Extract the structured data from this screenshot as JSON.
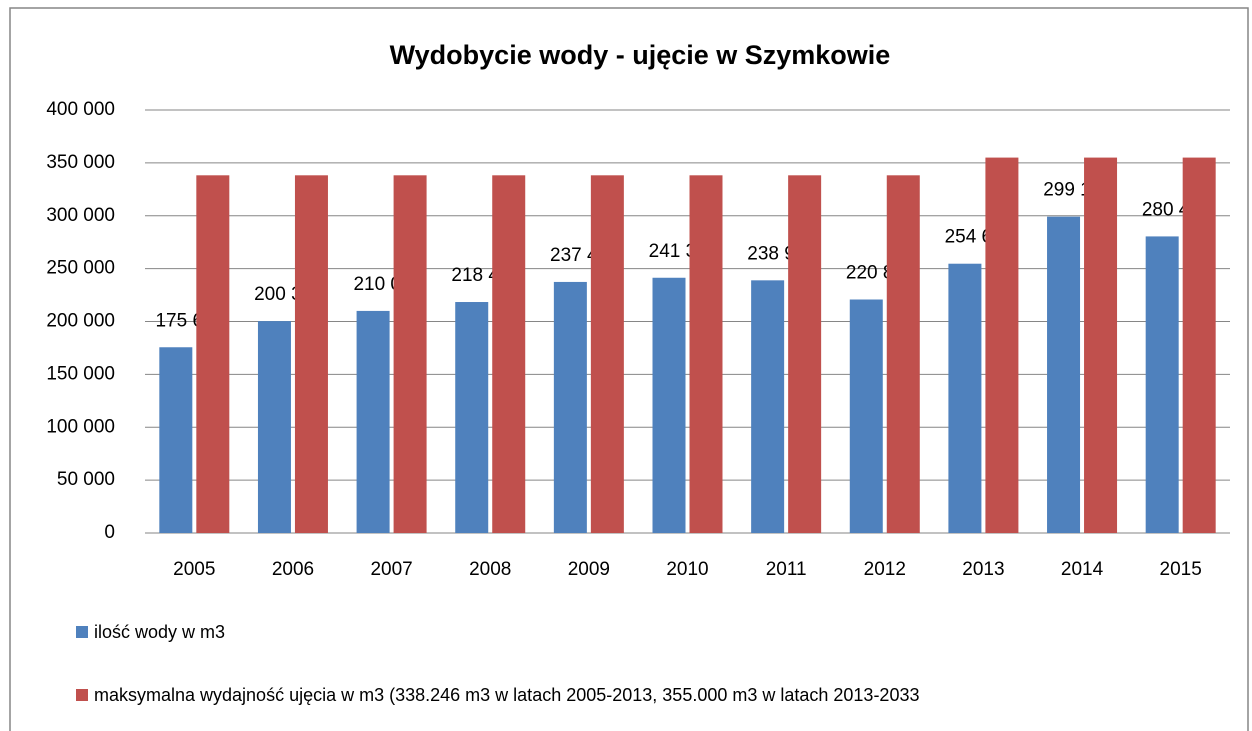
{
  "chart_data": {
    "type": "bar",
    "title": "Wydobycie wody - ujęcie w Szymkowie",
    "categories": [
      "2005",
      "2006",
      "2007",
      "2008",
      "2009",
      "2010",
      "2011",
      "2012",
      "2013",
      "2014",
      "2015"
    ],
    "series": [
      {
        "name": "ilość wody w m3",
        "color": "#4f81bd",
        "values": [
          175645,
          200388,
          210011,
          218423,
          237412,
          241360,
          238930,
          220800,
          254646,
          299155,
          280462
        ],
        "value_labels": [
          "175 645",
          "200 388",
          "210 011",
          "218 423",
          "237 412",
          "241 360",
          "238 930",
          "220 800",
          "254 646",
          "299 155",
          "280 462"
        ]
      },
      {
        "name": "maksymalna wydajność ujęcia w m3 (338.246 m3 w latach 2005-2013, 355.000 m3 w latach 2013-2033",
        "color": "#c0504d",
        "values": [
          338246,
          338246,
          338246,
          338246,
          338246,
          338246,
          338246,
          338246,
          355000,
          355000,
          355000
        ]
      }
    ],
    "ylim": [
      0,
      400000
    ],
    "yticks": [
      0,
      {
        "value": 50000,
        "label": "50 000"
      },
      {
        "value": 100000,
        "label": "100 000"
      },
      {
        "value": 150000,
        "label": "150 000"
      },
      {
        "value": 200000,
        "label": "200 000"
      },
      {
        "value": 250000,
        "label": "250 000"
      },
      {
        "value": 300000,
        "label": "300 000"
      },
      {
        "value": 350000,
        "label": "350 000"
      },
      {
        "value": 400000,
        "label": "400 000"
      }
    ],
    "grid": true,
    "legend": "bottom"
  }
}
